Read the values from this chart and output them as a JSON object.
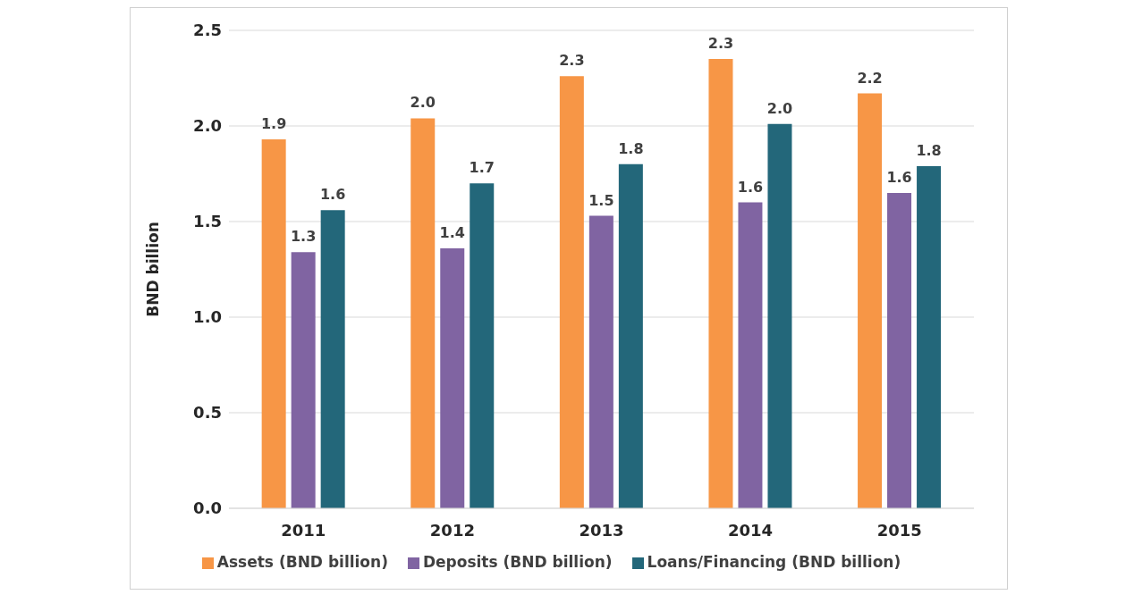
{
  "chart_data": {
    "type": "bar",
    "ylabel": "BND billion",
    "categories": [
      "2011",
      "2012",
      "2013",
      "2014",
      "2015"
    ],
    "series": [
      {
        "name": "Assets (BND billion)",
        "color": "#f79646",
        "values": [
          1.93,
          2.04,
          2.26,
          2.35,
          2.17
        ],
        "value_labels": [
          "1.9",
          "2.0",
          "2.3",
          "2.3",
          "2.2"
        ]
      },
      {
        "name": "Deposits (BND billion)",
        "color": "#8064a2",
        "values": [
          1.34,
          1.36,
          1.53,
          1.6,
          1.65
        ],
        "value_labels": [
          "1.3",
          "1.4",
          "1.5",
          "1.6",
          "1.6"
        ]
      },
      {
        "name": "Loans/Financing (BND billion)",
        "color": "#23677a",
        "values": [
          1.56,
          1.7,
          1.8,
          2.01,
          1.79
        ],
        "value_labels": [
          "1.6",
          "1.7",
          "1.8",
          "2.0",
          "1.8"
        ]
      }
    ],
    "ylim": [
      0,
      2.5
    ],
    "yticks": [
      {
        "value": 0,
        "label": "0.0"
      },
      {
        "value": 0.5,
        "label": "0.5"
      },
      {
        "value": 1,
        "label": "1.0"
      },
      {
        "value": 1.5,
        "label": "1.5"
      },
      {
        "value": 2,
        "label": "2.0"
      },
      {
        "value": 2.5,
        "label": "2.5"
      }
    ],
    "grid": "y",
    "legend": "bottom"
  }
}
